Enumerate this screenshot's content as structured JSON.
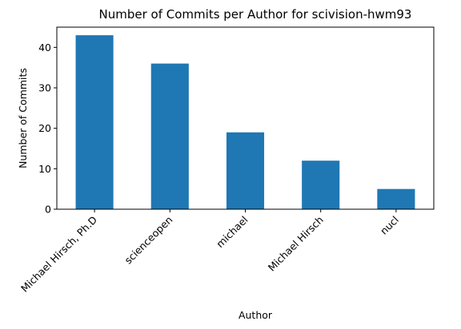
{
  "chart_data": {
    "type": "bar",
    "title": "Number of Commits per Author for scivision-hwm93",
    "xlabel": "Author",
    "ylabel": "Number of Commits",
    "categories": [
      "Michael Hirsch, Ph.D",
      "scienceopen",
      "michael",
      "Michael Hirsch",
      "nucl"
    ],
    "values": [
      43,
      36,
      19,
      12,
      5
    ],
    "ylim": [
      0,
      45
    ],
    "yticks": [
      0,
      10,
      20,
      30,
      40
    ],
    "bar_color": "#1f77b4",
    "grid": false,
    "legend": "none"
  }
}
